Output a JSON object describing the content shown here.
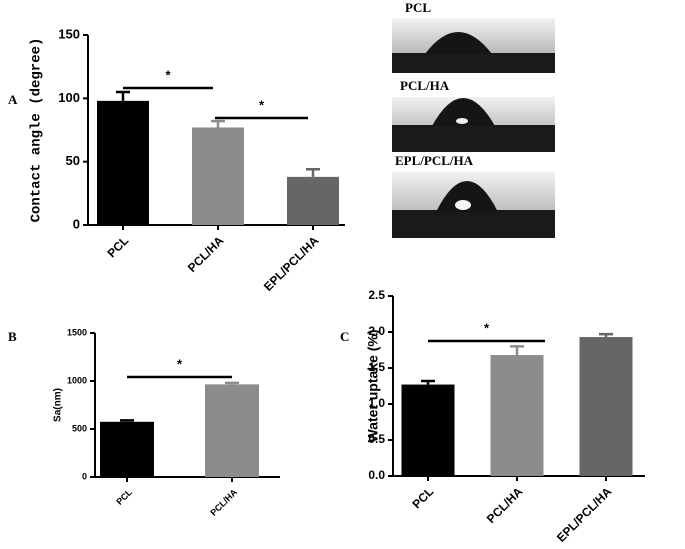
{
  "chart_data": [
    {
      "type": "bar",
      "panel_label": "A",
      "ylabel": "Contact angle (degree)",
      "categories": [
        "PCL",
        "PCL/HA",
        "EPL/PCL/HA"
      ],
      "values": [
        98,
        77,
        38
      ],
      "errors": [
        7,
        5,
        6
      ],
      "colors": [
        "#000000",
        "#8c8c8c",
        "#666666"
      ],
      "ylim": [
        0,
        150
      ],
      "yticks": [
        0,
        50,
        100,
        150
      ],
      "annotations": [
        "*",
        "*"
      ]
    },
    {
      "type": "bar",
      "panel_label": "B",
      "ylabel": "Sa(nm)",
      "categories": [
        "PCL",
        "PCL/HA"
      ],
      "values": [
        575,
        965
      ],
      "errors": [
        15,
        15
      ],
      "colors": [
        "#000000",
        "#8c8c8c"
      ],
      "ylim": [
        0,
        1500
      ],
      "yticks": [
        0,
        500,
        1000,
        1500
      ],
      "annotations": [
        "*"
      ]
    },
    {
      "type": "bar",
      "panel_label": "C",
      "ylabel": "Water uptake (%)",
      "categories": [
        "PCL",
        "PCL/HA",
        "EPL/PCL/HA"
      ],
      "values": [
        1.27,
        1.68,
        1.93
      ],
      "errors": [
        0.05,
        0.12,
        0.04
      ],
      "colors": [
        "#000000",
        "#8c8c8c",
        "#666666"
      ],
      "ylim": [
        0,
        2.5
      ],
      "yticks": [
        {
          "value": 0,
          "label": "0.0"
        },
        0.5,
        {
          "value": 1,
          "label": "1.0"
        },
        1.5,
        {
          "value": 2,
          "label": "2.0"
        },
        2.5
      ],
      "annotations": [
        "*"
      ]
    }
  ],
  "droplet_images": {
    "labels": [
      "PCL",
      "PCL/HA",
      "EPL/PCL/HA"
    ]
  }
}
